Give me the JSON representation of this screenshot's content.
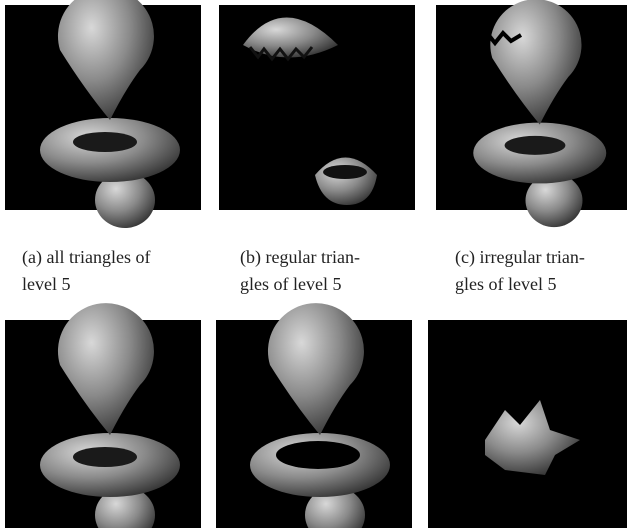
{
  "figure": {
    "captions": [
      {
        "lines": [
          "(a) all triangles of",
          "level 5"
        ]
      },
      {
        "lines": [
          "(b) regular trian-",
          "gles of level 5"
        ]
      },
      {
        "lines": [
          "(c) irregular trian-",
          "gles of level 5"
        ]
      }
    ]
  }
}
